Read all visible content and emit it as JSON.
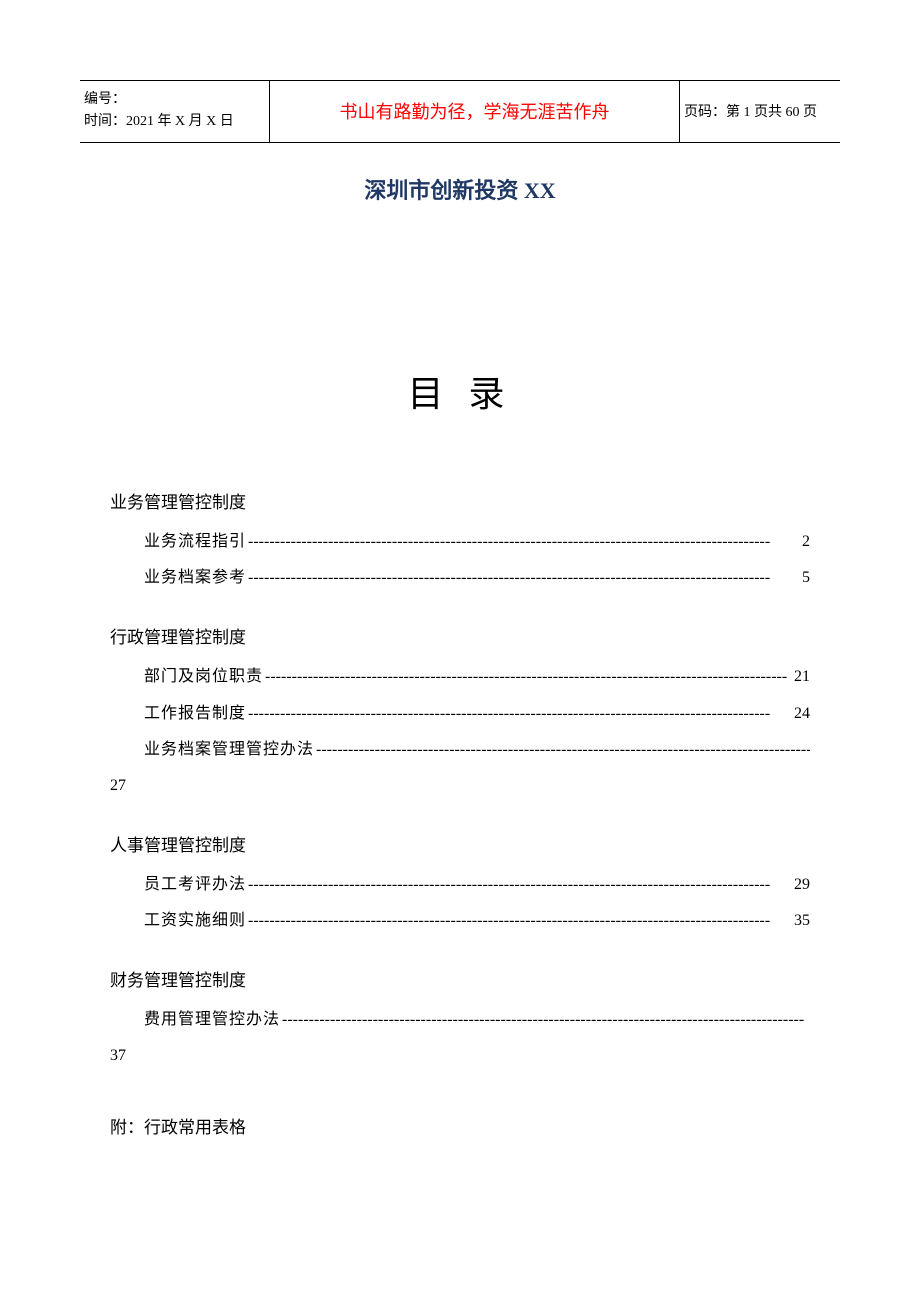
{
  "header": {
    "serial_label": "编号：",
    "date_label": "时间：",
    "date_value": "2021 年 X 月 X 日",
    "motto": "书山有路勤为径，学海无涯苦作舟",
    "page_label": "页码：",
    "page_value": "第 1 页共 60 页"
  },
  "title": {
    "prefix": "深圳市创新投资 ",
    "suffix": "XX"
  },
  "toc_heading": "目 录",
  "sections": [
    {
      "title": "业务管理管控制度",
      "entries": [
        {
          "label": "业务流程指引",
          "page": "2"
        },
        {
          "label": "业务档案参考",
          "page": "5"
        }
      ]
    },
    {
      "title": "行政管理管控制度",
      "entries": [
        {
          "label": "部门及岗位职责",
          "page": "21"
        },
        {
          "label": "工作报告制度",
          "page": "24"
        },
        {
          "label": "业务档案管理管控办法",
          "page": "27",
          "wrapped": true
        }
      ]
    },
    {
      "title": "人事管理管控制度",
      "entries": [
        {
          "label": "员工考评办法",
          "page": "29"
        },
        {
          "label": "工资实施细则",
          "page": "35"
        }
      ]
    },
    {
      "title": "财务管理管控制度",
      "entries": [
        {
          "label": "费用管理管控办法",
          "page": "37",
          "wrapped": true
        }
      ]
    }
  ],
  "appendix": "附：行政常用表格",
  "colors": {
    "motto": "#ff0000",
    "title": "#1f3864",
    "text": "#000000",
    "background": "#ffffff",
    "border": "#000000"
  },
  "fonts": {
    "body": "SimSun/宋体",
    "toc_title_size_pt": 28,
    "body_size_pt": 12,
    "title_size_pt": 16
  },
  "dash_fill": "--------------------------------------------------------------------------------------------------"
}
